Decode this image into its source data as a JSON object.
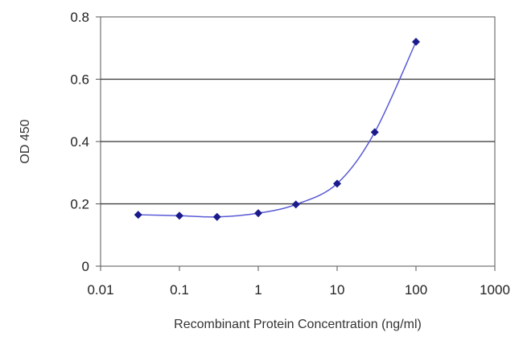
{
  "chart_data": {
    "type": "scatter",
    "title": "",
    "xlabel": "Recombinant Protein Concentration (ng/ml)",
    "ylabel": "OD 450",
    "xscale": "log",
    "xlim": [
      0.01,
      1000
    ],
    "ylim": [
      0,
      0.8
    ],
    "xticks": [
      0.01,
      0.1,
      1,
      10,
      100,
      1000
    ],
    "xtick_labels": [
      "0.01",
      "0.1",
      "1",
      "10",
      "100",
      "1000"
    ],
    "yticks": [
      0,
      0.2,
      0.4,
      0.6,
      0.8
    ],
    "ytick_labels": [
      "0",
      "0.2",
      "0.4",
      "0.6",
      "0.8"
    ],
    "grid": "horizontal",
    "legend": "none",
    "colors": {
      "points": "#1a1a8c",
      "curve": "#5a5ad6",
      "grid": "#333333",
      "frame": "#555555"
    },
    "series": [
      {
        "x": [
          0.03,
          0.1,
          0.3,
          1,
          3,
          10,
          30,
          100
        ],
        "y": [
          0.165,
          0.162,
          0.158,
          0.17,
          0.198,
          0.265,
          0.43,
          0.72
        ]
      }
    ]
  }
}
